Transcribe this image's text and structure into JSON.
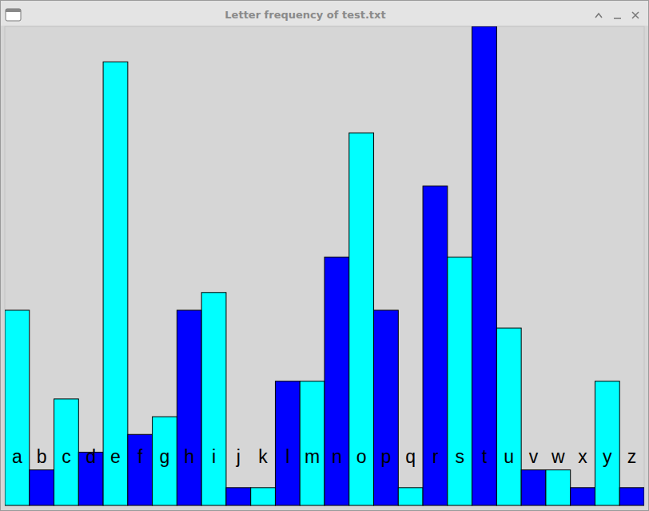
{
  "chart_data": {
    "type": "bar",
    "title": "Letter frequency of test.txt",
    "categories": [
      "a",
      "b",
      "c",
      "d",
      "e",
      "f",
      "g",
      "h",
      "i",
      "j",
      "k",
      "l",
      "m",
      "n",
      "o",
      "p",
      "q",
      "r",
      "s",
      "t",
      "u",
      "v",
      "w",
      "x",
      "y",
      "z"
    ],
    "values": [
      11,
      2,
      6,
      3,
      25,
      4,
      5,
      11,
      12,
      1,
      1,
      7,
      7,
      14,
      21,
      11,
      1,
      18,
      14,
      27,
      10,
      2,
      2,
      1,
      7,
      1
    ],
    "colors": [
      "#00ffff",
      "#0000ff",
      "#00ffff",
      "#0000ff",
      "#00ffff",
      "#0000ff",
      "#00ffff",
      "#0000ff",
      "#00ffff",
      "#0000ff",
      "#00ffff",
      "#0000ff",
      "#00ffff",
      "#0000ff",
      "#00ffff",
      "#0000ff",
      "#00ffff",
      "#0000ff",
      "#00ffff",
      "#0000ff",
      "#00ffff",
      "#0000ff",
      "#00ffff",
      "#0000ff",
      "#00ffff",
      "#0000ff"
    ],
    "ylim": [
      0,
      27
    ],
    "tick_labels": "x"
  }
}
